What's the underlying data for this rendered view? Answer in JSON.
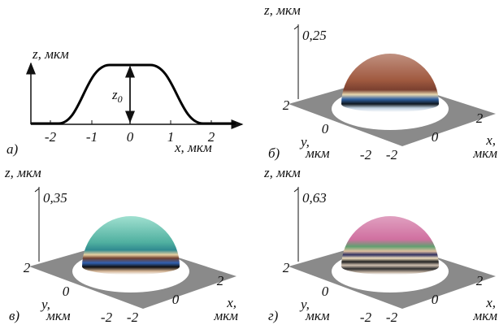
{
  "panels": [
    {
      "label": "а)",
      "z_axis": "z, мкм",
      "height_label": {
        "base": "z",
        "sub": "0"
      },
      "x_ticks": [
        "-2",
        "-1",
        "0",
        "1",
        "2"
      ],
      "x_axis": "x, мкм"
    },
    {
      "label": "б)",
      "z_axis": "z, мкм",
      "z_value": "0,25",
      "y_axis": "y,",
      "y_unit": "мкм",
      "y_ticks": [
        "2",
        "0",
        "-2"
      ],
      "x_ticks": [
        "-2",
        "0",
        "2"
      ],
      "x_axis": "x,",
      "x_unit": "мкм"
    },
    {
      "label": "в)",
      "z_axis": "z, мкм",
      "z_value": "0,35",
      "y_axis": "y,",
      "y_unit": "мкм",
      "y_ticks": [
        "2",
        "0",
        "-2"
      ],
      "x_ticks": [
        "-2",
        "0",
        "2"
      ],
      "x_axis": "x,",
      "x_unit": "мкм"
    },
    {
      "label": "г)",
      "z_axis": "z, мкм",
      "z_value": "0,63",
      "y_axis": "y,",
      "y_unit": "мкм",
      "y_ticks": [
        "2",
        "0",
        "-2"
      ],
      "x_ticks": [
        "-2",
        "0",
        "2"
      ],
      "x_axis": "x,",
      "x_unit": "мкм"
    }
  ]
}
